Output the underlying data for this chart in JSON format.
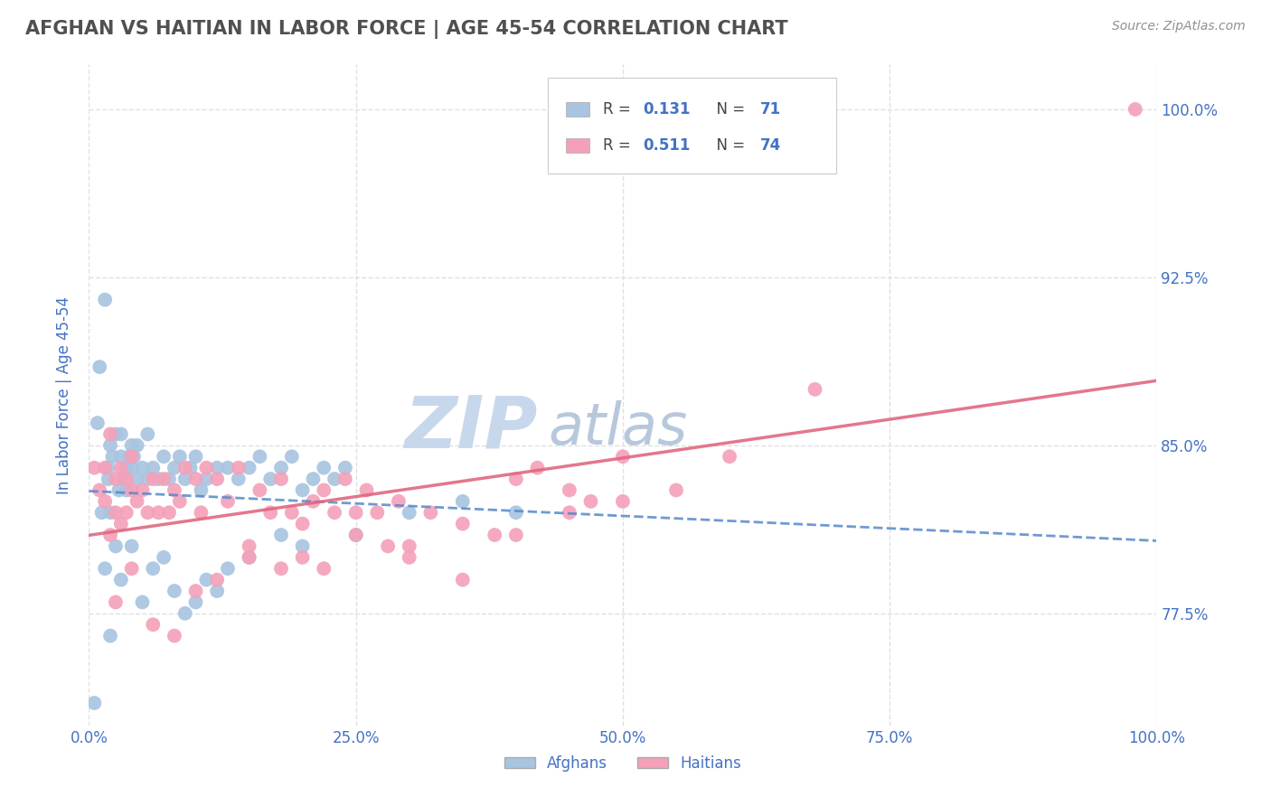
{
  "title": "AFGHAN VS HAITIAN IN LABOR FORCE | AGE 45-54 CORRELATION CHART",
  "source": "Source: ZipAtlas.com",
  "ylabel": "In Labor Force | Age 45-54",
  "xlim": [
    0.0,
    100.0
  ],
  "ylim": [
    72.5,
    102.0
  ],
  "yticks": [
    77.5,
    85.0,
    92.5,
    100.0
  ],
  "xticks": [
    0.0,
    25.0,
    50.0,
    75.0,
    100.0
  ],
  "afghan_R": 0.131,
  "afghan_N": 71,
  "haitian_R": 0.511,
  "haitian_N": 74,
  "afghan_color": "#a8c4e0",
  "haitian_color": "#f4a0b8",
  "afghan_trend_color": "#5588cc",
  "haitian_trend_color": "#e06880",
  "watermark_zip": "ZIP",
  "watermark_atlas": "atlas",
  "watermark_color_zip": "#c8d8ec",
  "watermark_color_atlas": "#b8c8dc",
  "title_color": "#505050",
  "source_color": "#909090",
  "axis_label_color": "#4472c4",
  "tick_label_color": "#4472c4",
  "background_color": "#ffffff",
  "grid_color": "#e0e0e0",
  "afghan_x": [
    0.5,
    0.8,
    1.0,
    1.2,
    1.5,
    1.5,
    1.8,
    1.8,
    2.0,
    2.0,
    2.2,
    2.5,
    2.5,
    2.8,
    3.0,
    3.0,
    3.2,
    3.5,
    3.5,
    3.8,
    4.0,
    4.0,
    4.2,
    4.5,
    4.5,
    5.0,
    5.5,
    5.5,
    6.0,
    6.5,
    7.0,
    7.5,
    8.0,
    8.5,
    9.0,
    9.5,
    10.0,
    10.5,
    11.0,
    12.0,
    13.0,
    14.0,
    15.0,
    16.0,
    17.0,
    18.0,
    19.0,
    20.0,
    21.0,
    22.0,
    23.0,
    24.0,
    2.0,
    3.0,
    4.0,
    5.0,
    6.0,
    7.0,
    8.0,
    9.0,
    10.0,
    11.0,
    12.0,
    13.0,
    15.0,
    18.0,
    20.0,
    25.0,
    30.0,
    35.0,
    40.0
  ],
  "afghan_y": [
    73.5,
    86.0,
    88.5,
    82.0,
    79.5,
    91.5,
    84.0,
    83.5,
    82.0,
    85.0,
    84.5,
    80.5,
    85.5,
    83.0,
    84.5,
    85.5,
    83.5,
    84.0,
    83.0,
    84.5,
    85.0,
    84.0,
    84.5,
    83.5,
    85.0,
    84.0,
    83.5,
    85.5,
    84.0,
    83.5,
    84.5,
    83.5,
    84.0,
    84.5,
    83.5,
    84.0,
    84.5,
    83.0,
    83.5,
    84.0,
    84.0,
    83.5,
    84.0,
    84.5,
    83.5,
    84.0,
    84.5,
    83.0,
    83.5,
    84.0,
    83.5,
    84.0,
    76.5,
    79.0,
    80.5,
    78.0,
    79.5,
    80.0,
    78.5,
    77.5,
    78.0,
    79.0,
    78.5,
    79.5,
    80.0,
    81.0,
    80.5,
    81.0,
    82.0,
    82.5,
    82.0
  ],
  "haitian_x": [
    0.5,
    1.0,
    1.5,
    1.5,
    2.0,
    2.0,
    2.5,
    2.5,
    3.0,
    3.0,
    3.5,
    3.5,
    4.0,
    4.0,
    4.5,
    5.0,
    5.5,
    6.0,
    6.5,
    7.0,
    7.5,
    8.0,
    8.5,
    9.0,
    10.0,
    10.5,
    11.0,
    12.0,
    13.0,
    14.0,
    15.0,
    16.0,
    17.0,
    18.0,
    19.0,
    20.0,
    21.0,
    22.0,
    23.0,
    24.0,
    25.0,
    26.0,
    27.0,
    29.0,
    30.0,
    32.0,
    35.0,
    38.0,
    40.0,
    42.0,
    45.0,
    47.0,
    50.0,
    2.5,
    4.0,
    6.0,
    8.0,
    10.0,
    12.0,
    15.0,
    18.0,
    20.0,
    22.0,
    25.0,
    28.0,
    30.0,
    35.0,
    40.0,
    45.0,
    50.0,
    55.0,
    60.0,
    68.0,
    98.0
  ],
  "haitian_y": [
    84.0,
    83.0,
    82.5,
    84.0,
    81.0,
    85.5,
    83.5,
    82.0,
    84.0,
    81.5,
    83.5,
    82.0,
    84.5,
    83.0,
    82.5,
    83.0,
    82.0,
    83.5,
    82.0,
    83.5,
    82.0,
    83.0,
    82.5,
    84.0,
    83.5,
    82.0,
    84.0,
    83.5,
    82.5,
    84.0,
    80.0,
    83.0,
    82.0,
    83.5,
    82.0,
    81.5,
    82.5,
    83.0,
    82.0,
    83.5,
    82.0,
    83.0,
    82.0,
    82.5,
    80.5,
    82.0,
    79.0,
    81.0,
    83.5,
    84.0,
    83.0,
    82.5,
    84.5,
    78.0,
    79.5,
    77.0,
    76.5,
    78.5,
    79.0,
    80.5,
    79.5,
    80.0,
    79.5,
    81.0,
    80.5,
    80.0,
    81.5,
    81.0,
    82.0,
    82.5,
    83.0,
    84.5,
    87.5,
    100.0
  ]
}
